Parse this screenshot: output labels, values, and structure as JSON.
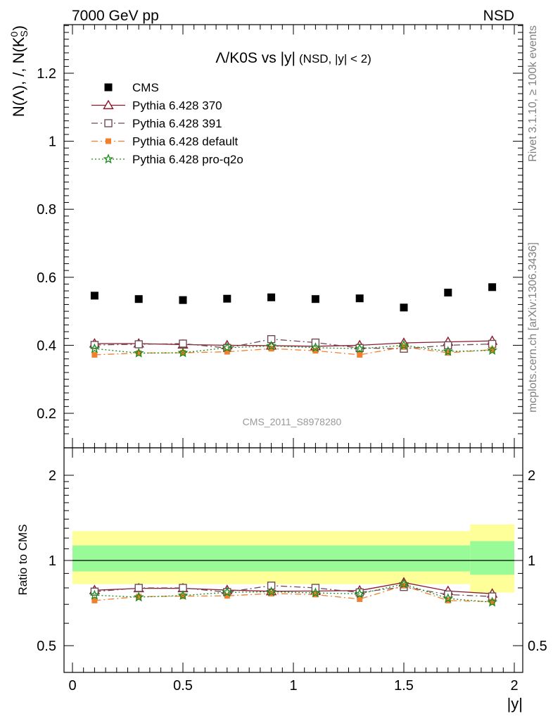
{
  "header": {
    "energy_label": "7000 GeV pp",
    "process_label": "NSD"
  },
  "side_labels": {
    "rivet": "Rivet 3.1.10, ≥ 100k events",
    "mcplots": "mcplots.cern.ch [arXiv:1306.3436]"
  },
  "analysis_id": "CMS_2011_S8978280",
  "chart_data": [
    {
      "type": "scatter",
      "title": "Λ/K0S vs |y|",
      "subtitle": "(NSD, |y| < 2)",
      "ylabel": "N(Λ), /, N(K⁰S)",
      "xlabel": "",
      "xlim": [
        -0.1,
        2.05
      ],
      "ylim": [
        0.12,
        1.36
      ],
      "y_ticks": [
        "0.2",
        "0.4",
        "0.6",
        "0.8",
        "1",
        "1.2"
      ],
      "legend_position": "top-left",
      "x": [
        0.1,
        0.3,
        0.5,
        0.7,
        0.9,
        1.1,
        1.3,
        1.5,
        1.7,
        1.9
      ],
      "series": [
        {
          "name": "CMS",
          "color": "#000000",
          "marker": "square-filled",
          "line": "none",
          "values": [
            0.546,
            0.536,
            0.533,
            0.537,
            0.541,
            0.536,
            0.538,
            0.511,
            0.555,
            0.571
          ]
        },
        {
          "name": "Pythia 6.428 370",
          "color": "#8b1a2b",
          "marker": "triangle-open",
          "line": "solid",
          "values": [
            0.405,
            0.405,
            0.402,
            0.4,
            0.399,
            0.397,
            0.4,
            0.407,
            0.41,
            0.413
          ]
        },
        {
          "name": "Pythia 6.428 391",
          "color": "#6e4a55",
          "marker": "square-open",
          "line": "dashdot",
          "values": [
            0.401,
            0.403,
            0.405,
            0.392,
            0.418,
            0.408,
            0.392,
            0.39,
            0.4,
            0.404
          ]
        },
        {
          "name": "Pythia 6.428 default",
          "color": "#f08030",
          "marker": "square-filled-small",
          "line": "dashdot",
          "values": [
            0.372,
            0.377,
            0.378,
            0.381,
            0.39,
            0.384,
            0.372,
            0.395,
            0.378,
            0.387
          ]
        },
        {
          "name": "Pythia 6.428 pro-q2o",
          "color": "#1a8a1a",
          "marker": "star",
          "line": "dotted",
          "values": [
            0.39,
            0.377,
            0.378,
            0.393,
            0.398,
            0.393,
            0.39,
            0.4,
            0.382,
            0.385
          ]
        }
      ]
    },
    {
      "type": "scatter",
      "title": "",
      "ylabel": "Ratio to CMS",
      "xlabel": "|y|",
      "xlim": [
        -0.1,
        2.05
      ],
      "ylim": [
        0.35,
        2.3
      ],
      "x_ticks": [
        "0",
        "0.5",
        "1",
        "1.5",
        "2"
      ],
      "y_ticks": [
        "0.5",
        "1",
        "2"
      ],
      "y_scale": "log",
      "x": [
        0.1,
        0.3,
        0.5,
        0.7,
        0.9,
        1.1,
        1.3,
        1.5,
        1.7,
        1.9
      ],
      "bands": {
        "inner_color": "#98fb98",
        "outer_color": "#ffff99",
        "segments": [
          {
            "x0": 0.0,
            "x1": 1.8,
            "inner": [
              0.915,
              1.13
            ],
            "outer": [
              0.825,
              1.27
            ]
          },
          {
            "x0": 1.8,
            "x1": 2.0,
            "inner": [
              0.89,
              1.17
            ],
            "outer": [
              0.77,
              1.34
            ]
          }
        ]
      },
      "series": [
        {
          "name": "Pythia 6.428 370",
          "color": "#8b1a2b",
          "marker": "triangle-open",
          "line": "solid",
          "values": [
            0.785,
            0.797,
            0.797,
            0.786,
            0.778,
            0.78,
            0.783,
            0.836,
            0.78,
            0.763
          ]
        },
        {
          "name": "Pythia 6.428 391",
          "color": "#6e4a55",
          "marker": "square-open",
          "line": "dashdot",
          "values": [
            0.776,
            0.8,
            0.8,
            0.773,
            0.815,
            0.8,
            0.771,
            0.806,
            0.758,
            0.746
          ]
        },
        {
          "name": "Pythia 6.428 default",
          "color": "#f08030",
          "marker": "square-filled-small",
          "line": "dashdot",
          "values": [
            0.722,
            0.745,
            0.748,
            0.75,
            0.764,
            0.758,
            0.73,
            0.815,
            0.722,
            0.715
          ]
        },
        {
          "name": "Pythia 6.428 pro-q2o",
          "color": "#1a8a1a",
          "marker": "star",
          "line": "dotted",
          "values": [
            0.754,
            0.742,
            0.752,
            0.772,
            0.775,
            0.768,
            0.762,
            0.826,
            0.734,
            0.712
          ]
        }
      ]
    }
  ]
}
